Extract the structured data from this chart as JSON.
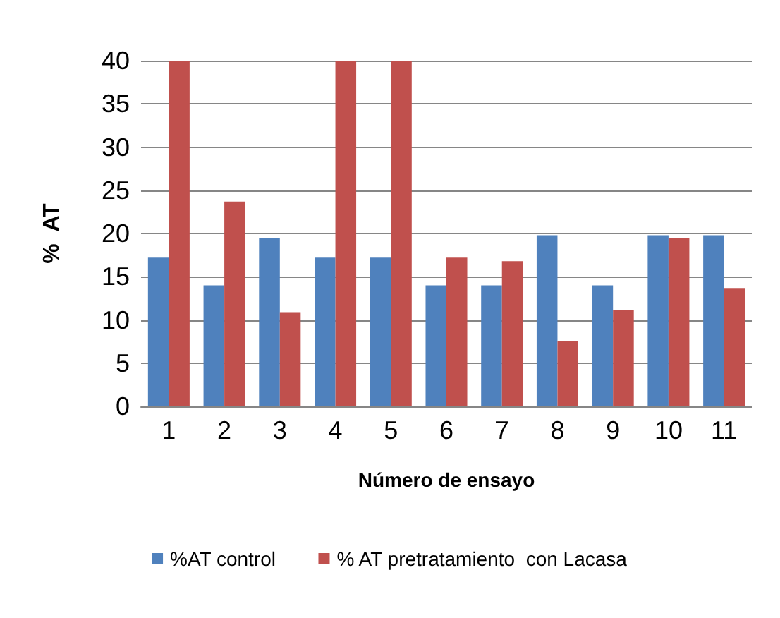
{
  "chart_data": {
    "type": "bar",
    "xlabel": "Número de ensayo",
    "ylabel": "%  AT",
    "categories": [
      "1",
      "2",
      "3",
      "4",
      "5",
      "6",
      "7",
      "8",
      "9",
      "10",
      "11"
    ],
    "series": [
      {
        "name": "%AT control",
        "color": "#4f81bd",
        "values": [
          17.2,
          14,
          19.5,
          17.2,
          17.2,
          14,
          14,
          19.8,
          14,
          19.8,
          19.8
        ]
      },
      {
        "name": "% AT pretratamiento  con Lacasa",
        "color": "#c0504d",
        "values": [
          40,
          23.7,
          10.9,
          40,
          40,
          17.2,
          16.8,
          7.6,
          11.1,
          19.5,
          13.7
        ]
      }
    ],
    "ylim": [
      0,
      40
    ],
    "yticks": [
      0,
      5,
      10,
      15,
      20,
      25,
      30,
      35,
      40
    ],
    "grid": "y",
    "legend": "bottom"
  }
}
